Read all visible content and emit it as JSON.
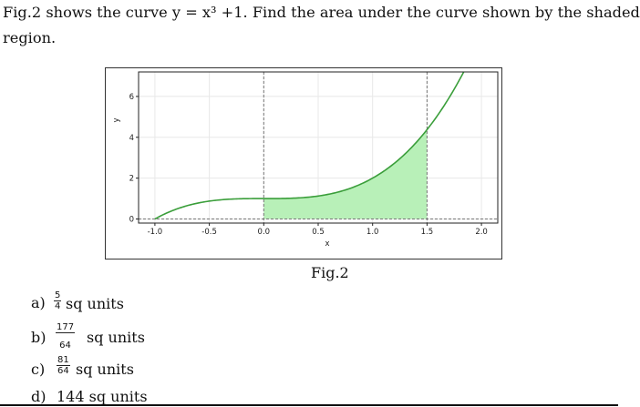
{
  "question": {
    "line1": "Fig.2 shows the curve y = x³ +1. Find the area under the curve shown by the shaded",
    "line2": "region."
  },
  "figure_caption": "Fig.2",
  "chart_data": {
    "type": "area",
    "function": "y = x³ + 1",
    "curve_x_range": [
      -1.0,
      2.0
    ],
    "shaded_x_range": [
      0.0,
      1.5
    ],
    "xlabel": "x",
    "ylabel": "y",
    "xlim": [
      -1.15,
      2.15
    ],
    "ylim": [
      -0.2,
      7.2
    ],
    "x_ticks": [
      "-1.0",
      "-0.5",
      "0.0",
      "0.5",
      "1.0",
      "1.5",
      "2.0"
    ],
    "x_tick_values": [
      -1.0,
      -0.5,
      0.0,
      0.5,
      1.0,
      1.5,
      2.0
    ],
    "y_ticks": [
      "0",
      "2",
      "4",
      "6"
    ],
    "y_tick_values": [
      0,
      2,
      4,
      6
    ],
    "vertical_dashed_lines_at": [
      0.0,
      1.5
    ],
    "horizontal_dashed_line_at": 0,
    "grid": true,
    "colors": {
      "curve": "#3a9e3a",
      "shade": "#b8f0b8",
      "dashed": "#777777",
      "grid": "#e8e8e8"
    }
  },
  "options": [
    {
      "letter": "a)",
      "numerator": "5",
      "denominator": "4",
      "unit": "sq units"
    },
    {
      "letter": "b)",
      "numerator": "177",
      "denominator": "64",
      "unit": "sq units"
    },
    {
      "letter": "c)",
      "numerator": "81",
      "denominator": "64",
      "unit": "sq units"
    },
    {
      "letter": "d)",
      "text": "144 sq units"
    }
  ]
}
